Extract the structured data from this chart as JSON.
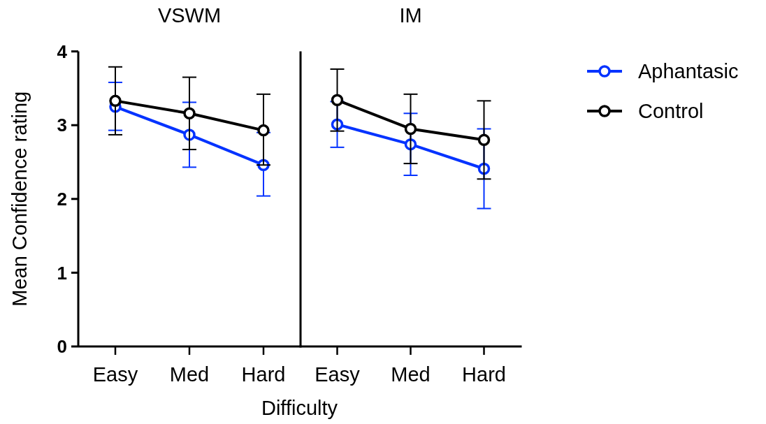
{
  "chart_data": [
    {
      "type": "line",
      "title": "VSWM",
      "xlabel": "Difficulty",
      "ylabel": "Mean Confidence rating",
      "categories": [
        "Easy",
        "Med",
        "Hard"
      ],
      "ylim": [
        0,
        4
      ],
      "yticks": [
        0,
        1,
        2,
        3,
        4
      ],
      "marker": "circle",
      "series": [
        {
          "color": "#0433ff",
          "values": [
            3.25,
            2.87,
            2.46
          ],
          "errors": [
            [
              2.93,
              3.58
            ],
            [
              2.43,
              3.31
            ],
            [
              2.04,
              2.9
            ]
          ]
        },
        {
          "color": "#000000",
          "values": [
            3.33,
            3.16,
            2.93
          ],
          "errors": [
            [
              2.87,
              3.79
            ],
            [
              2.67,
              3.65
            ],
            [
              2.46,
              3.42
            ]
          ]
        }
      ]
    },
    {
      "type": "line",
      "title": "IM",
      "categories": [
        "Easy",
        "Med",
        "Hard"
      ],
      "ylim": [
        0,
        4
      ],
      "yticks": [
        0,
        1,
        2,
        3,
        4
      ],
      "tick_labels": "x",
      "marker": "circle",
      "legend": "top right",
      "series": [
        {
          "name": "Aphantasic",
          "color": "#0433ff",
          "values": [
            3.01,
            2.74,
            2.41
          ],
          "errors": [
            [
              2.7,
              3.32
            ],
            [
              2.32,
              3.16
            ],
            [
              1.87,
              2.95
            ]
          ]
        },
        {
          "name": "Control",
          "color": "#000000",
          "values": [
            3.34,
            2.95,
            2.8
          ],
          "errors": [
            [
              2.92,
              3.76
            ],
            [
              2.48,
              3.42
            ],
            [
              2.27,
              3.33
            ]
          ]
        }
      ]
    }
  ]
}
